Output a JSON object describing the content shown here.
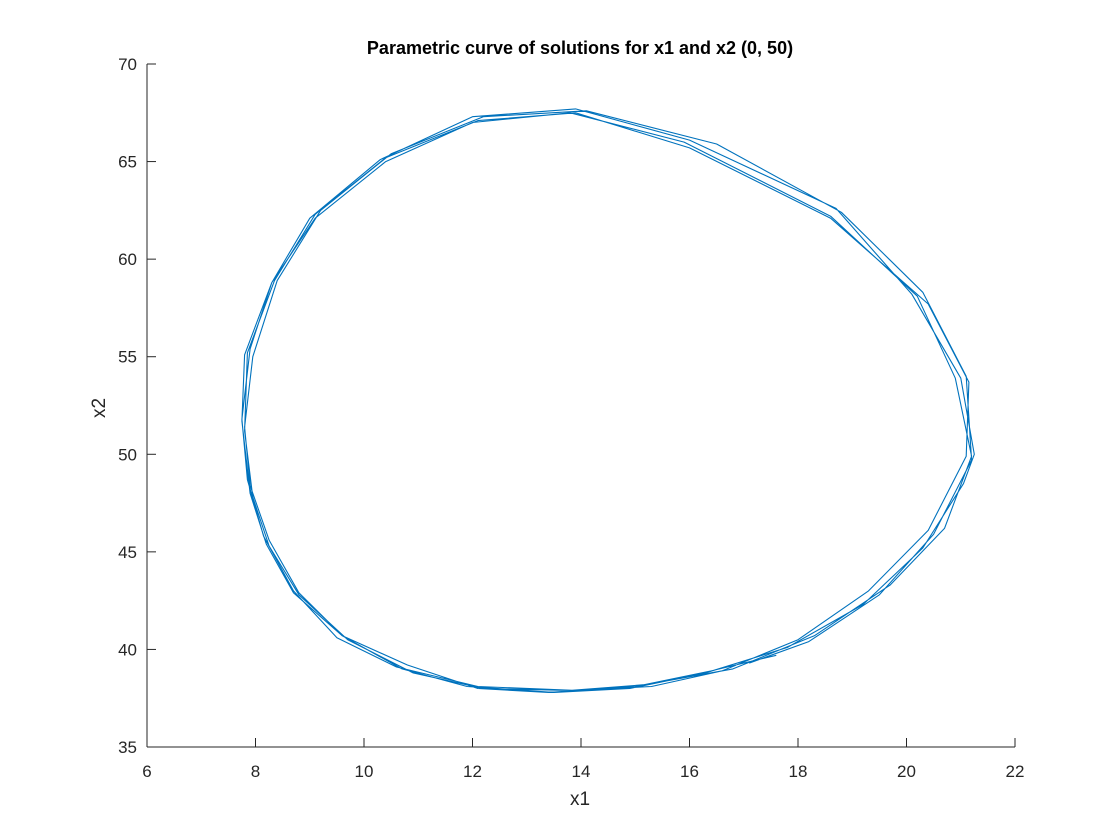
{
  "chart_data": {
    "type": "line",
    "title": "Parametric curve of solutions for x1 and x2 (0, 50)",
    "xlabel": "x1",
    "ylabel": "x2",
    "xlim": [
      6,
      22
    ],
    "ylim": [
      35,
      70
    ],
    "xticks": [
      6,
      8,
      10,
      12,
      14,
      16,
      18,
      20,
      22
    ],
    "yticks": [
      35,
      40,
      45,
      50,
      55,
      60,
      65,
      70
    ],
    "xtick_labels": [
      "6",
      "8",
      "10",
      "12",
      "14",
      "16",
      "18",
      "20",
      "22"
    ],
    "ytick_labels": [
      "35",
      "40",
      "45",
      "50",
      "55",
      "60",
      "65",
      "70"
    ],
    "grid": false,
    "legend": "none",
    "series": [
      {
        "color": "#0072BD",
        "x": [
          17.1,
          18.2,
          19.5,
          20.5,
          21.2,
          21.1,
          20.3,
          18.8,
          16.5,
          14.1,
          12.2,
          10.5,
          9.2,
          8.4,
          7.95,
          7.8,
          7.9,
          8.25,
          8.8,
          9.6,
          10.7,
          11.9,
          13.5,
          14.9,
          16.3,
          17.8,
          19.2,
          20.3,
          21.05,
          21.25,
          21.0,
          20.1,
          18.7,
          16.0,
          13.9,
          12.0,
          10.3,
          9.0,
          8.3,
          7.9,
          7.75,
          7.85,
          8.15,
          8.7,
          9.5,
          10.6,
          12.1,
          13.9,
          15.3,
          16.6,
          18.0,
          19.3,
          20.4,
          21.1,
          21.15,
          20.4,
          18.6,
          16.0,
          13.9,
          12.1,
          10.4,
          9.1,
          8.35,
          7.85,
          7.8,
          7.95,
          8.25,
          8.8,
          9.7,
          10.9,
          12.2,
          13.8,
          15.2,
          16.8,
          18.3,
          19.7,
          20.7,
          21.2,
          20.9,
          20.2,
          18.6,
          15.9,
          13.8,
          12.0,
          10.4,
          9.1,
          8.3,
          7.8,
          7.75,
          7.9,
          8.2,
          8.7,
          9.6,
          10.8,
          12.1,
          13.4,
          15.0,
          16.4,
          17.6
        ],
        "y": [
          39.3,
          40.4,
          42.8,
          45.9,
          49.7,
          54.0,
          58.3,
          62.4,
          65.9,
          67.6,
          67.3,
          65.4,
          62.5,
          58.9,
          55.0,
          51.4,
          48.4,
          45.6,
          42.9,
          40.7,
          39.0,
          38.1,
          37.8,
          38.0,
          38.8,
          40.1,
          42.3,
          45.2,
          48.5,
          50.0,
          53.9,
          58.2,
          62.6,
          66.1,
          67.7,
          67.3,
          65.1,
          62.1,
          58.8,
          55.4,
          51.8,
          48.7,
          45.8,
          43.0,
          40.6,
          39.1,
          38.1,
          37.9,
          38.1,
          38.9,
          40.5,
          43.0,
          46.1,
          49.9,
          53.7,
          57.7,
          62.1,
          65.7,
          67.5,
          67.1,
          65.2,
          62.3,
          58.9,
          55.2,
          51.2,
          47.8,
          45.3,
          42.8,
          40.5,
          38.8,
          38.0,
          37.9,
          38.2,
          39.0,
          40.7,
          43.3,
          46.2,
          49.9,
          53.9,
          58.1,
          62.2,
          66.0,
          67.5,
          67.0,
          65.0,
          62.1,
          58.8,
          55.1,
          51.7,
          48.0,
          45.4,
          42.9,
          40.7,
          39.2,
          38.0,
          37.8,
          38.1,
          38.9,
          39.7
        ]
      }
    ]
  }
}
